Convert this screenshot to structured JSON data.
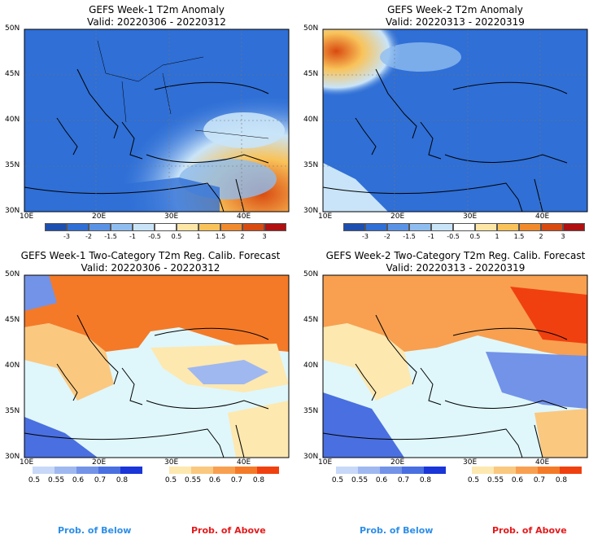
{
  "panels": [
    {
      "title_line1": "GEFS Week-1 T2m Anomaly",
      "title_line2": "Valid: 20220306 - 20220312"
    },
    {
      "title_line1": "GEFS Week-2 T2m Anomaly",
      "title_line2": "Valid: 20220313 - 20220319"
    },
    {
      "title_line1": "GEFS Week-1 Two-Category T2m Reg. Calib. Forecast",
      "title_line2": "Valid: 20220306 - 20220312"
    },
    {
      "title_line1": "GEFS Week-2 Two-Category T2m Reg. Calib. Forecast",
      "title_line2": "Valid: 20220313 - 20220319"
    }
  ],
  "axes": {
    "lat_labels": [
      "50N",
      "45N",
      "40N",
      "35N",
      "30N"
    ],
    "lon_labels": [
      "10E",
      "20E",
      "30E",
      "40E"
    ]
  },
  "anomaly_colorbar": {
    "labels": [
      "-3",
      "-2",
      "-1.5",
      "-1",
      "-0.5",
      "0.5",
      "1",
      "1.5",
      "2",
      "3"
    ],
    "colors": [
      "#1d4fb0",
      "#2f6fd6",
      "#5a93e6",
      "#8fbdf0",
      "#c9e4f8",
      "#ffffff",
      "#fde6a6",
      "#f9c35a",
      "#f08a2c",
      "#d94a10",
      "#b01010"
    ]
  },
  "prob_colorbar": {
    "below_labels": [
      "0.5",
      "0.55",
      "0.6",
      "0.7",
      "0.8"
    ],
    "above_labels": [
      "0.5",
      "0.55",
      "0.6",
      "0.7",
      "0.8"
    ],
    "below_colors": [
      "#c8d8f8",
      "#9fb8f0",
      "#7393e8",
      "#4a6fe0",
      "#1a35d8"
    ],
    "above_colors": [
      "#fde8b0",
      "#fbc880",
      "#f8a050",
      "#f47a28",
      "#f04010"
    ]
  },
  "legend": {
    "below": "Prob. of Below",
    "above": "Prob. of Above"
  },
  "colors": {
    "sea": "#dff7fb",
    "land_blue": "#4a8fe0",
    "border": "#000000"
  }
}
